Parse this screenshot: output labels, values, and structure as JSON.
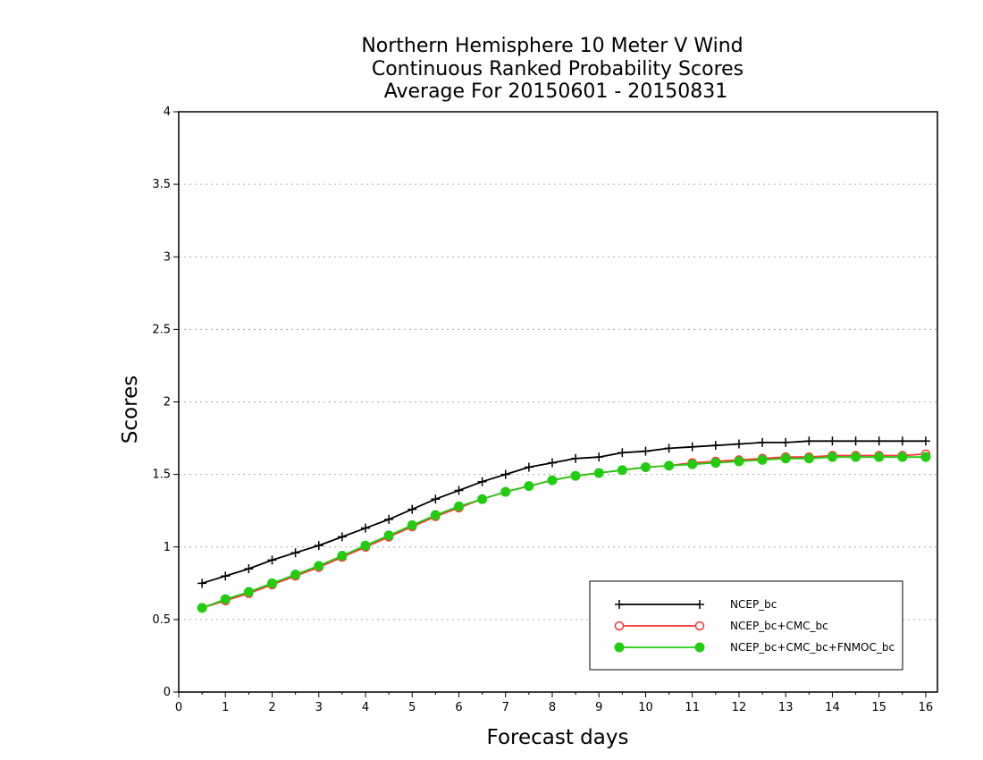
{
  "chart_data": {
    "type": "line",
    "title_lines": [
      "Northern Hemisphere 10 Meter V Wind",
      "Continuous Ranked Probability Scores",
      "Average For 20150601 - 20150831"
    ],
    "xlabel": "Forecast days",
    "ylabel": "Scores",
    "xlim": [
      0,
      16.25
    ],
    "ylim": [
      0,
      4
    ],
    "x_ticks": [
      0,
      1,
      2,
      3,
      4,
      5,
      6,
      7,
      8,
      9,
      10,
      11,
      12,
      13,
      14,
      15,
      16
    ],
    "y_ticks": [
      0,
      0.5,
      1,
      1.5,
      2,
      2.5,
      3,
      3.5,
      4
    ],
    "y_tick_labels": [
      "0",
      "0.5",
      "1",
      "1.5",
      "2",
      "2.5",
      "3",
      "3.5",
      "4"
    ],
    "grid": "horizontal-dotted",
    "legend_position": "bottom-right",
    "x": [
      0.5,
      1.0,
      1.5,
      2.0,
      2.5,
      3.0,
      3.5,
      4.0,
      4.5,
      5.0,
      5.5,
      6.0,
      6.5,
      7.0,
      7.5,
      8.0,
      8.5,
      9.0,
      9.5,
      10.0,
      10.5,
      11.0,
      11.5,
      12.0,
      12.5,
      13.0,
      13.5,
      14.0,
      14.5,
      15.0,
      15.5,
      16.0
    ],
    "series": [
      {
        "name": "NCEP_bc",
        "color": "#000000",
        "marker": "plus",
        "values": [
          0.75,
          0.8,
          0.85,
          0.91,
          0.96,
          1.01,
          1.07,
          1.13,
          1.19,
          1.26,
          1.33,
          1.39,
          1.45,
          1.5,
          1.55,
          1.58,
          1.61,
          1.62,
          1.65,
          1.66,
          1.68,
          1.69,
          1.7,
          1.71,
          1.72,
          1.72,
          1.73,
          1.73,
          1.73,
          1.73,
          1.73,
          1.73
        ]
      },
      {
        "name": "NCEP_bc+CMC_bc",
        "color": "#ff3333",
        "marker": "open-circle",
        "values": [
          0.58,
          0.63,
          0.68,
          0.74,
          0.8,
          0.86,
          0.93,
          1.0,
          1.07,
          1.14,
          1.21,
          1.27,
          1.33,
          1.38,
          1.42,
          1.46,
          1.49,
          1.51,
          1.53,
          1.55,
          1.56,
          1.58,
          1.59,
          1.6,
          1.61,
          1.62,
          1.62,
          1.63,
          1.63,
          1.63,
          1.63,
          1.64
        ]
      },
      {
        "name": "NCEP_bc+CMC_bc+FNMOC_bc",
        "color": "#22cc11",
        "marker": "filled-circle",
        "values": [
          0.58,
          0.64,
          0.69,
          0.75,
          0.81,
          0.87,
          0.94,
          1.01,
          1.08,
          1.15,
          1.22,
          1.28,
          1.33,
          1.38,
          1.42,
          1.46,
          1.49,
          1.51,
          1.53,
          1.55,
          1.56,
          1.57,
          1.58,
          1.59,
          1.6,
          1.61,
          1.61,
          1.62,
          1.62,
          1.62,
          1.62,
          1.62
        ]
      }
    ]
  }
}
